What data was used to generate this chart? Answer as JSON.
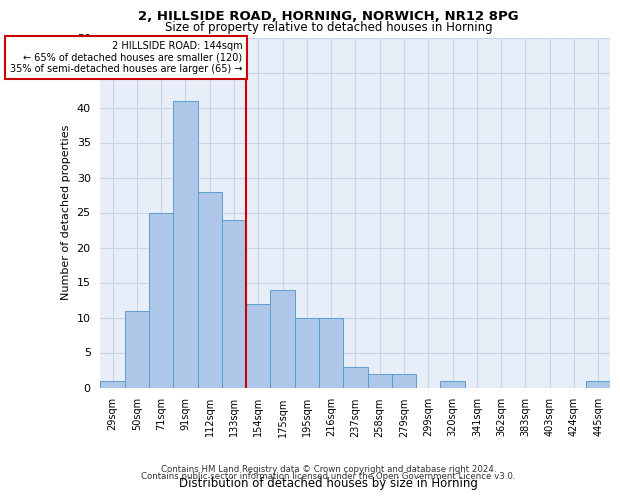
{
  "title1": "2, HILLSIDE ROAD, HORNING, NORWICH, NR12 8PG",
  "title2": "Size of property relative to detached houses in Horning",
  "xlabel": "Distribution of detached houses by size in Horning",
  "ylabel": "Number of detached properties",
  "categories": [
    "29sqm",
    "50sqm",
    "71sqm",
    "91sqm",
    "112sqm",
    "133sqm",
    "154sqm",
    "175sqm",
    "195sqm",
    "216sqm",
    "237sqm",
    "258sqm",
    "279sqm",
    "299sqm",
    "320sqm",
    "341sqm",
    "362sqm",
    "383sqm",
    "403sqm",
    "424sqm",
    "445sqm"
  ],
  "values": [
    1,
    11,
    25,
    41,
    28,
    24,
    12,
    14,
    10,
    10,
    3,
    2,
    2,
    0,
    1,
    0,
    0,
    0,
    0,
    0,
    1
  ],
  "bar_color": "#aec6e8",
  "bar_edgecolor": "#5a9ecf",
  "redline_index": 6,
  "redline_label": "2 HILLSIDE ROAD: 144sqm",
  "annotation_line2": "← 65% of detached houses are smaller (120)",
  "annotation_line3": "35% of semi-detached houses are larger (65) →",
  "annotation_box_color": "#ffffff",
  "annotation_box_edgecolor": "#cc0000",
  "redline_color": "#cc0000",
  "ylim": [
    0,
    50
  ],
  "yticks": [
    0,
    5,
    10,
    15,
    20,
    25,
    30,
    35,
    40,
    45,
    50
  ],
  "grid_color": "#c8d4e8",
  "background_color": "#e8eef7",
  "footer1": "Contains HM Land Registry data © Crown copyright and database right 2024.",
  "footer2": "Contains public sector information licensed under the Open Government Licence v3.0."
}
